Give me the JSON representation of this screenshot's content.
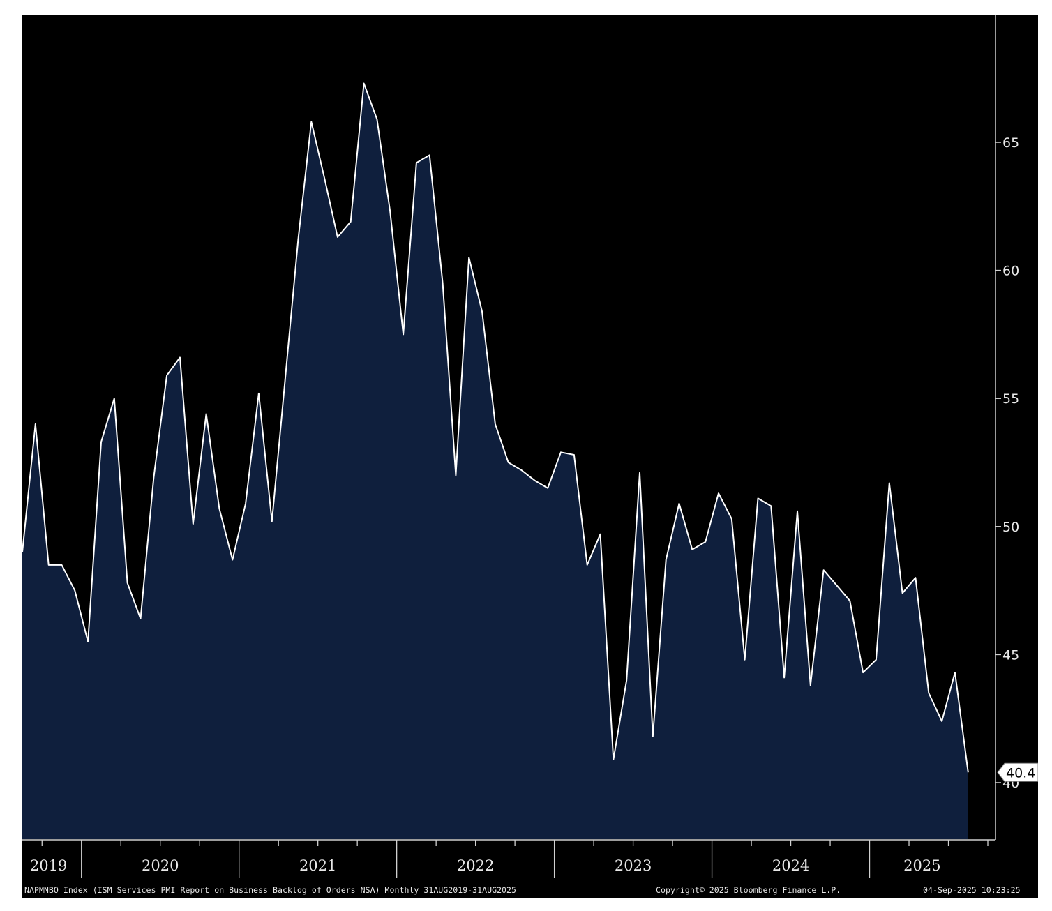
{
  "chart_data": {
    "type": "area",
    "x_start": "2019-08",
    "x_end": "2025-08",
    "frequency": "monthly",
    "values": [
      49.0,
      54.0,
      48.5,
      48.5,
      47.5,
      45.5,
      53.3,
      55.0,
      47.8,
      46.4,
      51.9,
      55.9,
      56.6,
      50.1,
      54.4,
      50.7,
      48.7,
      50.9,
      55.2,
      50.2,
      55.7,
      61.2,
      65.8,
      63.6,
      61.3,
      61.9,
      67.3,
      65.9,
      62.3,
      57.5,
      64.2,
      64.5,
      59.5,
      52.0,
      60.5,
      58.4,
      54.0,
      52.5,
      52.2,
      51.8,
      51.5,
      52.9,
      52.8,
      48.5,
      49.7,
      40.9,
      44.0,
      52.1,
      41.8,
      48.7,
      50.9,
      49.1,
      49.4,
      51.3,
      50.3,
      44.8,
      51.1,
      50.8,
      44.1,
      50.6,
      43.8,
      48.3,
      47.7,
      47.1,
      44.3,
      44.8,
      51.7,
      47.4,
      48.0,
      43.5,
      42.4,
      44.3,
      40.4
    ],
    "last_value_label": "40.4",
    "ylim": [
      38.0,
      70.0
    ],
    "yticks": [
      40,
      45,
      50,
      55,
      60,
      65
    ],
    "ytick_labels": [
      "40",
      "45",
      "50",
      "55",
      "60",
      "65"
    ],
    "xtick_labels": [
      "2019",
      "2020",
      "2021",
      "2022",
      "2023",
      "2024",
      "2025"
    ],
    "axis_side": "right",
    "grid": false,
    "colors": {
      "background": "#000000",
      "fill": "#0f1f3d",
      "line": "#ffffff",
      "text": "#e8e8e8"
    }
  },
  "footer": {
    "description": "NAPMNBO Index (ISM Services PMI Report on Business Backlog of Orders NSA)  Monthly 31AUG2019-31AUG2025",
    "copyright": "Copyright© 2025 Bloomberg Finance L.P.",
    "timestamp": "04-Sep-2025 10:23:25"
  }
}
